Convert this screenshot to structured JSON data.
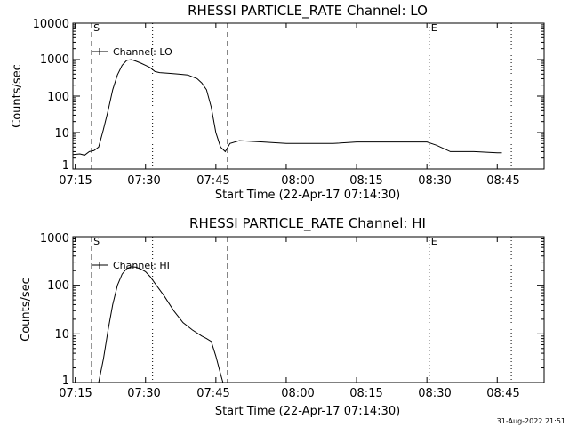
{
  "footer_timestamp": "31-Aug-2022 21:51",
  "chart_data": [
    {
      "type": "line",
      "title": "RHESSI PARTICLE_RATE Channel: LO",
      "xlabel": "Start Time (22-Apr-17 07:14:30)",
      "ylabel": "Counts/sec",
      "y_scale": "log",
      "xlim": [
        "07:14:30",
        "08:55"
      ],
      "ylim": [
        1,
        10000
      ],
      "x_tick_labels": [
        "07:15",
        "07:30",
        "07:45",
        "08:00",
        "08:15",
        "08:30",
        "08:45"
      ],
      "y_tick_labels": [
        "1",
        "10",
        "100",
        "1000",
        "10000"
      ],
      "legend": "Channel: LO",
      "legend_position": "top-left",
      "markers": [
        {
          "label": "S",
          "time": "07:18:30",
          "style": "dashed"
        },
        {
          "label": "",
          "time": "07:47:30",
          "style": "dashed"
        },
        {
          "label": "",
          "time": "07:31:30",
          "style": "dotted"
        },
        {
          "label": "E",
          "time": "08:30:30",
          "style": "dotted"
        },
        {
          "label": "",
          "time": "08:48",
          "style": "dotted"
        }
      ],
      "series": [
        {
          "name": "Channel: LO",
          "x": [
            "07:14:30",
            "07:16",
            "07:17",
            "07:18",
            "07:19",
            "07:20",
            "07:21",
            "07:22",
            "07:23",
            "07:24",
            "07:25",
            "07:26",
            "07:27",
            "07:28",
            "07:29",
            "07:30",
            "07:31",
            "07:32",
            "07:33",
            "07:35",
            "07:37",
            "07:39",
            "07:41",
            "07:42",
            "07:43",
            "07:44",
            "07:45",
            "07:46",
            "07:47",
            "07:48",
            "07:50",
            "07:55",
            "08:00",
            "08:05",
            "08:10",
            "08:15",
            "08:20",
            "08:25",
            "08:30",
            "08:32",
            "08:35",
            "08:40",
            "08:45",
            "08:46"
          ],
          "y": [
            2.5,
            2.6,
            2.4,
            3.0,
            3.2,
            4.0,
            12,
            40,
            150,
            380,
            700,
            950,
            1000,
            900,
            800,
            700,
            600,
            470,
            440,
            420,
            400,
            380,
            300,
            230,
            150,
            50,
            10,
            4,
            3,
            5,
            6,
            5.5,
            5,
            5,
            5,
            5.5,
            5.5,
            5.5,
            5.5,
            4.5,
            3,
            3,
            2.8,
            2.8
          ]
        }
      ]
    },
    {
      "type": "line",
      "title": "RHESSI PARTICLE_RATE Channel: HI",
      "xlabel": "Start Time (22-Apr-17 07:14:30)",
      "ylabel": "Counts/sec",
      "y_scale": "log",
      "xlim": [
        "07:14:30",
        "08:55"
      ],
      "ylim": [
        1,
        1000
      ],
      "x_tick_labels": [
        "07:15",
        "07:30",
        "07:45",
        "08:00",
        "08:15",
        "08:30",
        "08:45"
      ],
      "y_tick_labels": [
        "1",
        "10",
        "100",
        "1000"
      ],
      "legend": "Channel: HI",
      "legend_position": "top-left",
      "markers": [
        {
          "label": "S",
          "time": "07:18:30",
          "style": "dashed"
        },
        {
          "label": "",
          "time": "07:47:30",
          "style": "dashed"
        },
        {
          "label": "",
          "time": "07:31:30",
          "style": "dotted"
        },
        {
          "label": "E",
          "time": "08:30:30",
          "style": "dotted"
        },
        {
          "label": "",
          "time": "08:48",
          "style": "dotted"
        }
      ],
      "series": [
        {
          "name": "Channel: HI",
          "x": [
            "07:20",
            "07:21",
            "07:22",
            "07:23",
            "07:24",
            "07:25",
            "07:26",
            "07:27",
            "07:28",
            "07:29",
            "07:30",
            "07:31",
            "07:32",
            "07:34",
            "07:36",
            "07:38",
            "07:40",
            "07:42",
            "07:43",
            "07:44",
            "07:45",
            "07:46",
            "07:46:30"
          ],
          "y": [
            1,
            3,
            12,
            40,
            100,
            170,
            220,
            240,
            235,
            215,
            190,
            150,
            110,
            60,
            30,
            17,
            12,
            9,
            8,
            7,
            3.5,
            1.5,
            1
          ]
        }
      ]
    }
  ]
}
